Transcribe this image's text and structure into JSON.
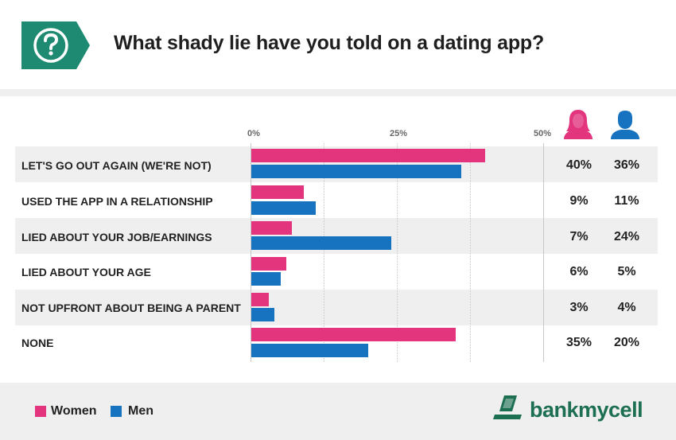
{
  "title": "What shady lie have you told on a dating app?",
  "colors": {
    "women": "#e2357e",
    "men": "#1773bf",
    "badge": "#1f8a72",
    "logo": "#1d6f52"
  },
  "icons": {
    "badge": "question-icon",
    "women": "woman-icon",
    "men": "man-icon",
    "logo": "phone-logo-icon"
  },
  "legend": {
    "women": "Women",
    "men": "Men"
  },
  "brand": "bankmycell",
  "chart_data": {
    "type": "bar",
    "orientation": "horizontal",
    "title": "What shady lie have you told on a dating app?",
    "xlim": [
      0,
      50
    ],
    "ticks": [
      "0%",
      "25%",
      "50%"
    ],
    "categories": [
      "LET'S GO OUT AGAIN (WE'RE NOT)",
      "USED THE APP IN A RELATIONSHIP",
      "LIED ABOUT YOUR JOB/EARNINGS",
      "LIED ABOUT YOUR AGE",
      "NOT UPFRONT ABOUT BEING A PARENT",
      "NONE"
    ],
    "series": [
      {
        "name": "Women",
        "values": [
          40,
          9,
          7,
          6,
          3,
          35
        ],
        "labels": [
          "40%",
          "9%",
          "7%",
          "6%",
          "3%",
          "35%"
        ]
      },
      {
        "name": "Men",
        "values": [
          36,
          11,
          24,
          5,
          4,
          20
        ],
        "labels": [
          "36%",
          "11%",
          "24%",
          "5%",
          "4%",
          "20%"
        ]
      }
    ]
  }
}
